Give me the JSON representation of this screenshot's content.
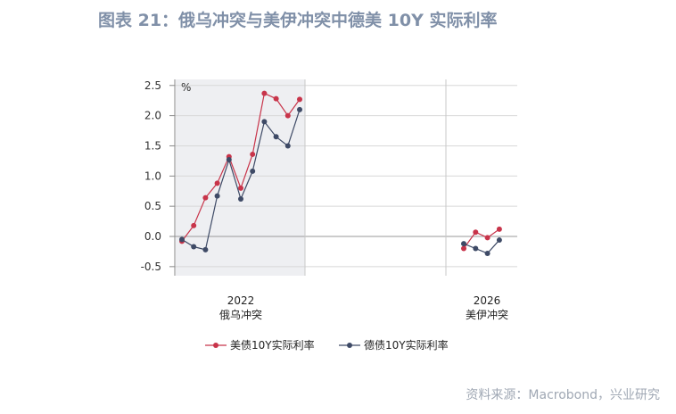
{
  "title": "图表 21：俄乌冲突与美伊冲突中德美 10Y 实际利率",
  "source": "资料来源：Macrobond，兴业研究",
  "chart_data": {
    "type": "line",
    "unit_label": "%",
    "ylim": [
      -0.65,
      2.6
    ],
    "yticks": [
      "2.5",
      "2.0",
      "1.5",
      "1.0",
      "0.5",
      "0.0",
      "-0.5"
    ],
    "ytick_values": [
      2.5,
      2.0,
      1.5,
      1.0,
      0.5,
      0.0,
      -0.5
    ],
    "grid": true,
    "legend_position": "bottom",
    "panels": [
      {
        "year": "2022",
        "event": "俄乌冲突",
        "shaded": true
      },
      {
        "year": "2026",
        "event": "美伊冲突",
        "shaded": false
      }
    ],
    "series": [
      {
        "name": "美债10Y实际利率",
        "color": "#c8344a",
        "panel1": [
          -0.08,
          0.18,
          0.64,
          0.88,
          1.32,
          0.8,
          1.36,
          2.37,
          2.28,
          2.0,
          2.27
        ],
        "panel2": [
          -0.2,
          0.07,
          -0.02,
          0.12
        ]
      },
      {
        "name": "德债10Y实际利率",
        "color": "#3e4a66",
        "panel1": [
          -0.05,
          -0.17,
          -0.22,
          0.67,
          1.27,
          0.62,
          1.08,
          1.9,
          1.65,
          1.5,
          2.1
        ],
        "panel2": [
          -0.12,
          -0.2,
          -0.28,
          -0.06
        ]
      }
    ]
  }
}
